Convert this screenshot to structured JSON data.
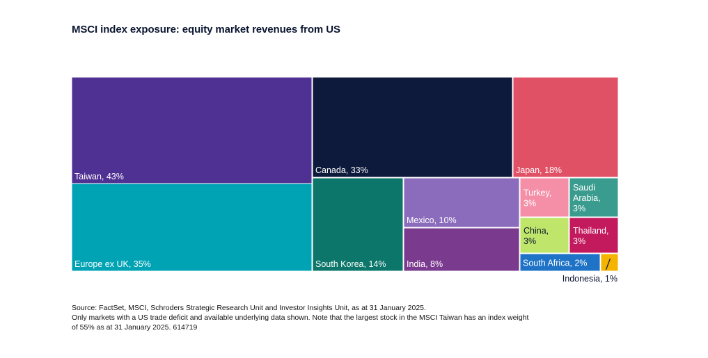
{
  "chart_data": {
    "type": "treemap",
    "title": "MSCI index exposure: equity market revenues from US",
    "unit": "%",
    "items": [
      {
        "name": "Taiwan",
        "value": 43,
        "label": "Taiwan, 43%",
        "color": "#4f3093",
        "text_color": "#ffffff"
      },
      {
        "name": "Europe ex UK",
        "value": 35,
        "label": "Europe ex UK, 35%",
        "color": "#00a3b4",
        "text_color": "#ffffff"
      },
      {
        "name": "Canada",
        "value": 33,
        "label": "Canada, 33%",
        "color": "#0d1a3b",
        "text_color": "#ffffff"
      },
      {
        "name": "Japan",
        "value": 18,
        "label": "Japan, 18%",
        "color": "#e05166",
        "text_color": "#ffffff"
      },
      {
        "name": "South Korea",
        "value": 14,
        "label": "South Korea, 14%",
        "color": "#0b7669",
        "text_color": "#ffffff"
      },
      {
        "name": "Mexico",
        "value": 10,
        "label": "Mexico, 10%",
        "color": "#8b6cbc",
        "text_color": "#ffffff"
      },
      {
        "name": "India",
        "value": 8,
        "label": "India, 8%",
        "color": "#7a3a8e",
        "text_color": "#ffffff"
      },
      {
        "name": "Turkey",
        "value": 3,
        "label": "Turkey, 3%",
        "color": "#f48fa7",
        "text_color": "#ffffff"
      },
      {
        "name": "Saudi Arabia",
        "value": 3,
        "label": "Saudi Arabia, 3%",
        "color": "#3a9c8e",
        "text_color": "#ffffff"
      },
      {
        "name": "China",
        "value": 3,
        "label": "China, 3%",
        "color": "#bfe56b",
        "text_color": "#0a1530"
      },
      {
        "name": "Thailand",
        "value": 3,
        "label": "Thailand, 3%",
        "color": "#c3195d",
        "text_color": "#ffffff"
      },
      {
        "name": "South Africa",
        "value": 2,
        "label": "South Africa, 2%",
        "color": "#1e73c6",
        "text_color": "#ffffff"
      },
      {
        "name": "Indonesia",
        "value": 1,
        "label": "Indonesia, 1%",
        "color": "#f4b400",
        "text_color": "#0a1530"
      }
    ]
  },
  "notes": {
    "source": "Source: FactSet, MSCI, Schroders Strategic Research Unit and Investor Insights Unit, as at 31 January 2025.",
    "note_line1": "Only markets with a US trade deficit and available underlying data shown. Note that the largest stock in the MSCI Taiwan has an index weight",
    "note_line2": "of 55% as at 31 January 2025. 614719"
  }
}
